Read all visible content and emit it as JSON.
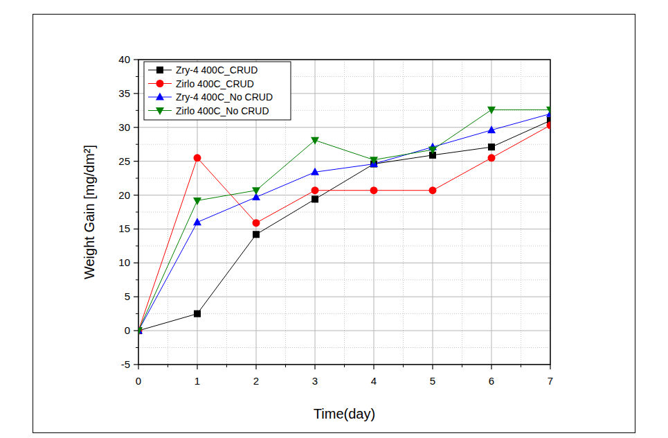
{
  "chart_data": {
    "type": "line",
    "x_label": "Time(day)",
    "y_label": "Weight Gain [mg/dm²]",
    "x": [
      0,
      1,
      2,
      3,
      4,
      5,
      6,
      7
    ],
    "series": [
      {
        "name": "Zry-4 400C_CRUD",
        "color": "#000000",
        "marker": "square",
        "values": [
          0,
          2.5,
          14.2,
          19.4,
          24.6,
          25.9,
          27.1,
          31.0
        ]
      },
      {
        "name": "Zirlo 400C_CRUD",
        "color": "#ff0000",
        "marker": "circle",
        "values": [
          0,
          25.5,
          15.9,
          20.7,
          20.7,
          20.7,
          25.5,
          30.3
        ]
      },
      {
        "name": "Zry-4 400C_No CRUD",
        "color": "#0000ff",
        "marker": "triangle-up",
        "values": [
          0,
          16.0,
          19.7,
          23.4,
          24.6,
          27.1,
          29.6,
          32.0
        ]
      },
      {
        "name": "Zirlo 400C_No CRUD",
        "color": "#008000",
        "marker": "triangle-down",
        "values": [
          0,
          19.2,
          20.7,
          28.1,
          25.2,
          26.7,
          32.6,
          32.6
        ]
      }
    ],
    "xlim": [
      0,
      7
    ],
    "xticks": [
      0,
      1,
      2,
      3,
      4,
      5,
      6,
      7
    ],
    "ylim": [
      -5,
      40
    ],
    "yticks": [
      -5,
      0,
      5,
      10,
      15,
      20,
      25,
      30,
      35,
      40
    ],
    "grid": true,
    "legend": "upper left"
  }
}
